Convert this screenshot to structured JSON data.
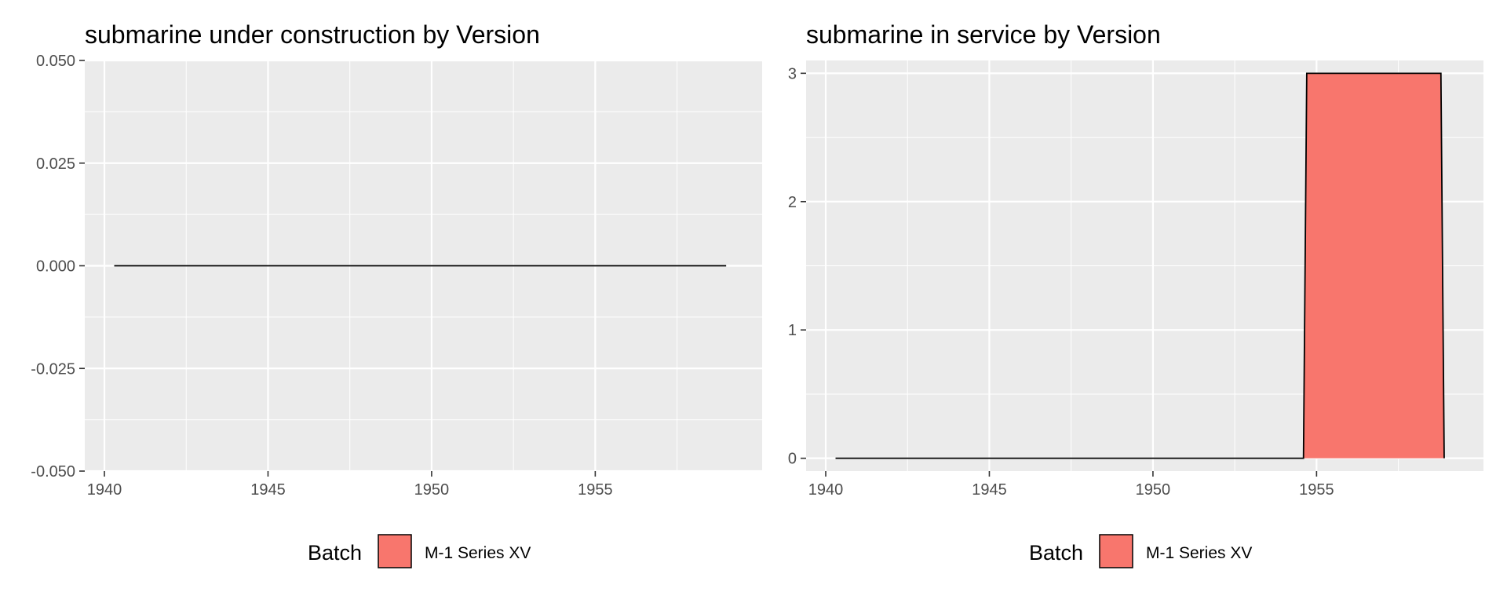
{
  "chart_data": [
    {
      "type": "area",
      "title": "submarine under construction by Version",
      "xlabel": "",
      "ylabel": "",
      "xlim": [
        1939.4,
        1960.1
      ],
      "ylim": [
        -0.05,
        0.05
      ],
      "x_ticks": [
        1940,
        1945,
        1950,
        1955
      ],
      "x_tick_labels": [
        "1940",
        "1945",
        "1950",
        "1955"
      ],
      "y_ticks": [
        -0.05,
        -0.025,
        0,
        0.025,
        0.05
      ],
      "y_tick_labels": [
        "-0.050",
        "-0.025",
        "0.000",
        "0.025",
        "0.050"
      ],
      "grid": true,
      "legend": {
        "position": "bottom",
        "title": "Batch",
        "entries": [
          {
            "label": "M-1 Series XV",
            "color": "#F8766D"
          }
        ]
      },
      "series": [
        {
          "name": "M-1 Series XV",
          "color": "#F8766D",
          "x": [
            1940.3,
            1959.0
          ],
          "values": [
            0,
            0
          ]
        }
      ]
    },
    {
      "type": "area",
      "title": "submarine in service by Version",
      "xlabel": "",
      "ylabel": "",
      "xlim": [
        1939.4,
        1960.1
      ],
      "ylim": [
        -0.1,
        3.1
      ],
      "x_ticks": [
        1940,
        1945,
        1950,
        1955
      ],
      "x_tick_labels": [
        "1940",
        "1945",
        "1950",
        "1955"
      ],
      "y_ticks": [
        0,
        1,
        2,
        3
      ],
      "y_tick_labels": [
        "0",
        "1",
        "2",
        "3"
      ],
      "grid": true,
      "legend": {
        "position": "bottom",
        "title": "Batch",
        "entries": [
          {
            "label": "M-1 Series XV",
            "color": "#F8766D"
          }
        ]
      },
      "series": [
        {
          "name": "M-1 Series XV",
          "color": "#F8766D",
          "x": [
            1940.3,
            1954.6,
            1954.7,
            1958.8,
            1958.9
          ],
          "values": [
            0,
            0,
            3,
            3,
            0
          ]
        }
      ]
    }
  ]
}
